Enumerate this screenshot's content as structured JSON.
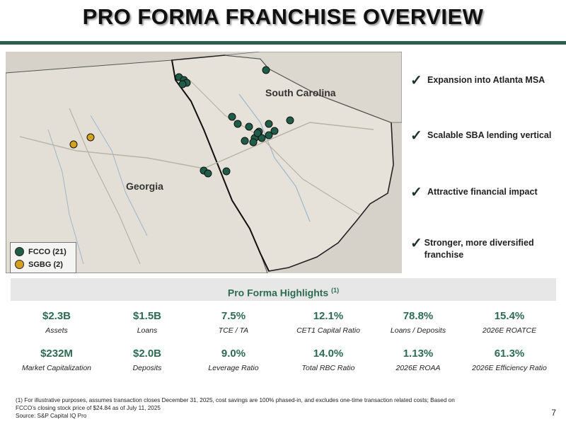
{
  "title": "PRO FORMA FRANCHISE OVERVIEW",
  "map": {
    "state_labels": {
      "sc": "South Carolina",
      "ga": "Georgia"
    },
    "legend": [
      {
        "label": "FCCO (21)",
        "color": "#1e5e48"
      },
      {
        "label": "SGBG (2)",
        "color": "#d4a020"
      }
    ],
    "colors": {
      "fcco": "#1e5e48",
      "sgbg": "#d4a020",
      "land": "#e3dfd6",
      "ocean": "#d6d2ca",
      "border": "#222222"
    }
  },
  "bullets": [
    {
      "icon": "check-icon",
      "text": "Expansion into Atlanta MSA"
    },
    {
      "icon": "check-icon",
      "text": "Scalable SBA lending vertical"
    },
    {
      "icon": "check-icon",
      "text": "Attractive financial impact"
    },
    {
      "icon": "check-icon",
      "text": "Stronger, more diversified franchise"
    }
  ],
  "highlights": {
    "title": "Pro Forma Highlights",
    "title_sup": "(1)",
    "metrics": [
      {
        "value": "$2.3B",
        "label": "Assets"
      },
      {
        "value": "$1.5B",
        "label": "Loans"
      },
      {
        "value": "7.5%",
        "label": "TCE / TA"
      },
      {
        "value": "12.1%",
        "label": "CET1 Capital Ratio"
      },
      {
        "value": "78.8%",
        "label": "Loans / Deposits"
      },
      {
        "value": "15.4%",
        "label": "2026E ROATCE"
      },
      {
        "value": "$232M",
        "label": "Market Capitalization"
      },
      {
        "value": "$2.0B",
        "label": "Deposits"
      },
      {
        "value": "9.0%",
        "label": "Leverage Ratio"
      },
      {
        "value": "14.0%",
        "label": "Total RBC Ratio"
      },
      {
        "value": "1.13%",
        "label": "2026E ROAA"
      },
      {
        "value": "61.3%",
        "label": "2026E Efficiency Ratio"
      }
    ]
  },
  "footnote": {
    "line1": "(1) For illustrative purposes, assumes transaction closes December 31, 2025, cost savings are 100% phased-in, and excludes one-time transaction related costs; Based on",
    "line2": "FCCO’s closing stock price of $24.84 as of July 11, 2025",
    "line3": "Source: S&P Capital IQ Pro"
  },
  "page_number": "7"
}
